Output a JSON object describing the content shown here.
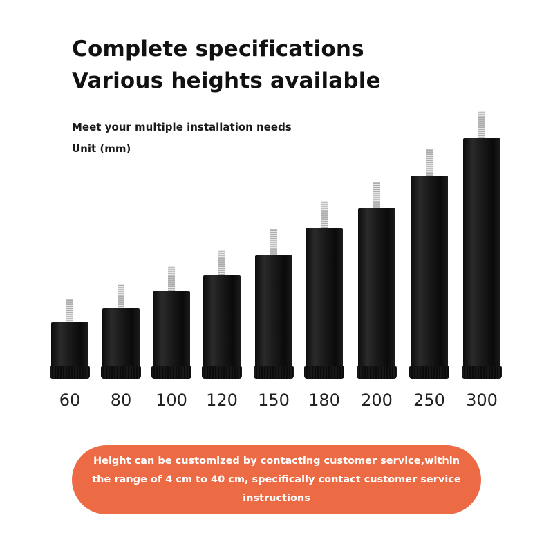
{
  "headline": {
    "line1": "Complete specifications",
    "line2": "Various heights available"
  },
  "subheadline": {
    "line1": "Meet your multiple installation needs",
    "line2": "Unit (mm)"
  },
  "products": [
    {
      "height_mm": 60,
      "label": "60"
    },
    {
      "height_mm": 80,
      "label": "80"
    },
    {
      "height_mm": 100,
      "label": "100"
    },
    {
      "height_mm": 120,
      "label": "120"
    },
    {
      "height_mm": 150,
      "label": "150"
    },
    {
      "height_mm": 180,
      "label": "180"
    },
    {
      "height_mm": 200,
      "label": "200"
    },
    {
      "height_mm": 250,
      "label": "250"
    },
    {
      "height_mm": 300,
      "label": "300"
    }
  ],
  "banner": {
    "text": "Height can be customized by contacting customer service,within the range of 4 cm to 40 cm, specifically contact customer service instructions"
  },
  "colors": {
    "banner": "#ec6a44",
    "leg": "#111111"
  }
}
